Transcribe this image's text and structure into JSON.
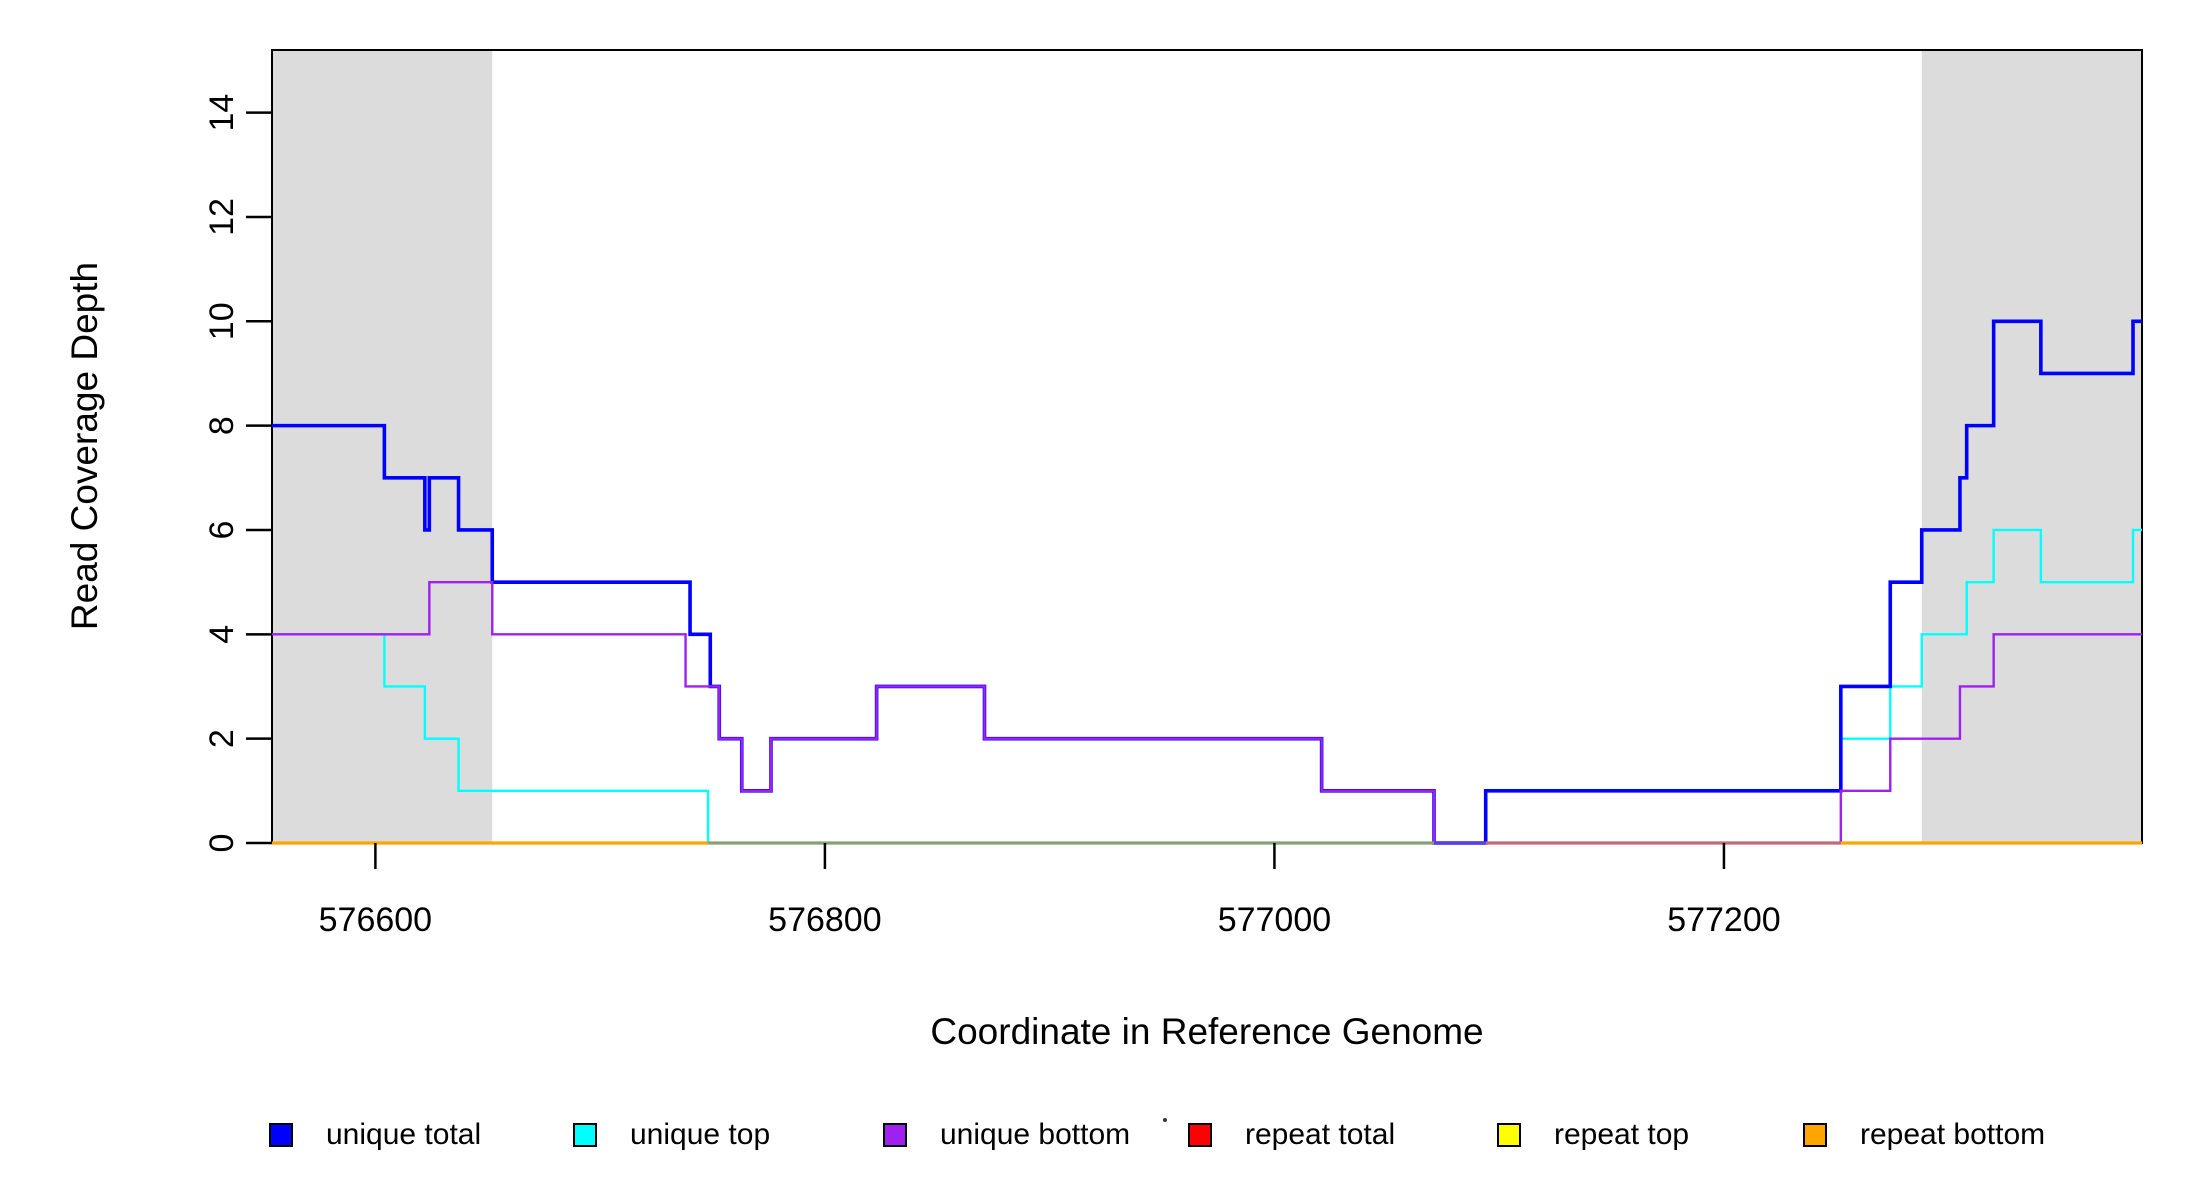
{
  "chart_data": {
    "type": "line",
    "subtype": "step-coverage-plot",
    "title": "",
    "xlabel": "Coordinate in Reference Genome",
    "ylabel": "Read Coverage Depth",
    "x_domain": [
      576554,
      577386
    ],
    "y_domain": [
      0,
      15.2
    ],
    "x_ticks": [
      576600,
      576800,
      577000,
      577200
    ],
    "y_ticks": [
      0,
      2,
      4,
      6,
      8,
      10,
      12,
      14
    ],
    "grid": false,
    "box": true,
    "shaded_regions": [
      {
        "name": "left-gray-band",
        "from": 576554,
        "to": 576652,
        "color": "#DCDCDC"
      },
      {
        "name": "right-gray-band",
        "from": 577288,
        "to": 577386,
        "color": "#DCDCDC"
      }
    ],
    "series": [
      {
        "name": "unique total",
        "color": "#0000FF",
        "width": 3.6,
        "points": [
          [
            576554,
            8
          ],
          [
            576604,
            7
          ],
          [
            576622,
            6
          ],
          [
            576624,
            7
          ],
          [
            576637,
            6
          ],
          [
            576652,
            5
          ],
          [
            576740,
            4
          ],
          [
            576749,
            3
          ],
          [
            576753,
            2
          ],
          [
            576763,
            1
          ],
          [
            576776,
            2
          ],
          [
            576823,
            3
          ],
          [
            576871,
            2
          ],
          [
            577021,
            1
          ],
          [
            577071,
            0
          ],
          [
            577094,
            1
          ],
          [
            577252,
            3
          ],
          [
            577274,
            5
          ],
          [
            577288,
            6
          ],
          [
            577305,
            7
          ],
          [
            577308,
            8
          ],
          [
            577320,
            10
          ],
          [
            577341,
            9
          ],
          [
            577382,
            10
          ],
          [
            577386,
            10
          ]
        ]
      },
      {
        "name": "unique top",
        "color": "#00FFFF",
        "width": 2.4,
        "points": [
          [
            576554,
            4
          ],
          [
            576604,
            3
          ],
          [
            576622,
            2
          ],
          [
            576637,
            1
          ],
          [
            576748,
            0
          ],
          [
            577094,
            1
          ],
          [
            577252,
            2
          ],
          [
            577274,
            3
          ],
          [
            577288,
            4
          ],
          [
            577308,
            5
          ],
          [
            577320,
            6
          ],
          [
            577341,
            5
          ],
          [
            577382,
            6
          ],
          [
            577386,
            6
          ]
        ]
      },
      {
        "name": "unique bottom",
        "color": "#A020F0",
        "width": 2.4,
        "points": [
          [
            576554,
            4
          ],
          [
            576624,
            5
          ],
          [
            576652,
            4
          ],
          [
            576738,
            3
          ],
          [
            576753,
            2
          ],
          [
            576763,
            1
          ],
          [
            576776,
            2
          ],
          [
            576823,
            3
          ],
          [
            576871,
            2
          ],
          [
            577021,
            1
          ],
          [
            577071,
            0
          ],
          [
            577252,
            1
          ],
          [
            577274,
            2
          ],
          [
            577305,
            3
          ],
          [
            577320,
            4
          ],
          [
            577386,
            4
          ]
        ]
      },
      {
        "name": "repeat total",
        "color": "#FF0000",
        "width": 2.4,
        "points": [
          [
            576554,
            0
          ],
          [
            577386,
            0
          ]
        ]
      },
      {
        "name": "repeat top",
        "color": "#FFFF00",
        "width": 2.4,
        "points": [
          [
            576554,
            0
          ],
          [
            577386,
            0
          ]
        ]
      },
      {
        "name": "repeat bottom",
        "color": "#FFA500",
        "width": 2.4,
        "points": [
          [
            576554,
            0
          ],
          [
            577386,
            0
          ]
        ]
      }
    ],
    "zero_line_blend_segments": [
      {
        "from": 576554,
        "to": 576748,
        "color": "#FFA500"
      },
      {
        "from": 576748,
        "to": 577071,
        "color": "#87A173"
      },
      {
        "from": 577071,
        "to": 577094,
        "color": "#5A41E0"
      },
      {
        "from": 577094,
        "to": 577252,
        "color": "#C26B74"
      },
      {
        "from": 577252,
        "to": 577386,
        "color": "#FFA500"
      }
    ],
    "legend": {
      "position": "bottom",
      "entries": [
        {
          "label": "unique total",
          "color": "#0000FF"
        },
        {
          "label": "unique top",
          "color": "#00FFFF"
        },
        {
          "label": "unique bottom",
          "color": "#A020F0"
        },
        {
          "label": "repeat total",
          "color": "#FF0000"
        },
        {
          "label": "repeat top",
          "color": "#FFFF00"
        },
        {
          "label": "repeat bottom",
          "color": "#FFA500"
        }
      ]
    }
  }
}
